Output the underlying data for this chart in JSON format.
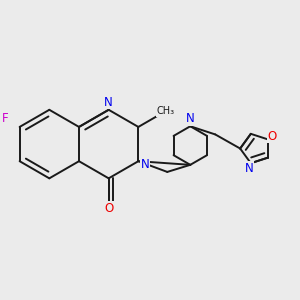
{
  "bg_color": "#ebebeb",
  "bond_color": "#1a1a1a",
  "N_color": "#0000ee",
  "O_color": "#ee0000",
  "F_color": "#cc00cc",
  "lw": 1.4,
  "dbo": 0.018,
  "figsize": [
    3.0,
    3.0
  ],
  "dpi": 100,
  "xlim": [
    0.0,
    1.0
  ],
  "ylim": [
    0.15,
    0.85
  ]
}
